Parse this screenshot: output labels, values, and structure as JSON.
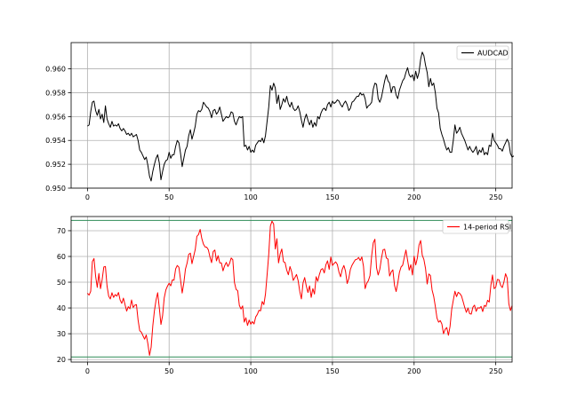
{
  "chart_data": [
    {
      "type": "line",
      "title": "",
      "xlabel": "",
      "ylabel": "",
      "xlim": [
        -10,
        260
      ],
      "ylim": [
        0.95,
        0.9622
      ],
      "grid": true,
      "legend_position": "top-right",
      "x_ticks": [
        0,
        50,
        100,
        150,
        200,
        250
      ],
      "x_tick_labels": [
        "0",
        "50",
        "100",
        "150",
        "200",
        "250"
      ],
      "y_ticks": [
        0.95,
        0.952,
        0.954,
        0.956,
        0.958,
        0.96
      ],
      "y_tick_labels": [
        "0.950",
        "0.952",
        "0.954",
        "0.956",
        "0.958",
        "0.960"
      ],
      "series": [
        {
          "name": "AUDCAD",
          "color": "#000000",
          "x_start": 0,
          "x_step": 1,
          "values": [
            0.9552,
            0.9553,
            0.9564,
            0.9572,
            0.9573,
            0.9565,
            0.9561,
            0.9566,
            0.9558,
            0.9562,
            0.9555,
            0.9569,
            0.9558,
            0.9554,
            0.9551,
            0.9556,
            0.9552,
            0.9553,
            0.9552,
            0.9554,
            0.955,
            0.9548,
            0.955,
            0.9548,
            0.9545,
            0.9546,
            0.9544,
            0.9546,
            0.9543,
            0.9544,
            0.9545,
            0.954,
            0.9532,
            0.953,
            0.9527,
            0.9524,
            0.9526,
            0.9519,
            0.951,
            0.9506,
            0.9514,
            0.952,
            0.9525,
            0.9528,
            0.9521,
            0.9507,
            0.9514,
            0.952,
            0.9523,
            0.9524,
            0.953,
            0.9525,
            0.9528,
            0.9528,
            0.9535,
            0.954,
            0.9538,
            0.9529,
            0.9518,
            0.9525,
            0.9532,
            0.9535,
            0.9544,
            0.9549,
            0.9541,
            0.9546,
            0.9552,
            0.9562,
            0.9565,
            0.9564,
            0.9566,
            0.9572,
            0.957,
            0.9568,
            0.9567,
            0.9564,
            0.9559,
            0.9565,
            0.9566,
            0.9562,
            0.9564,
            0.9568,
            0.9562,
            0.9556,
            0.9558,
            0.956,
            0.9559,
            0.956,
            0.9564,
            0.9563,
            0.9556,
            0.9553,
            0.9557,
            0.956,
            0.9559,
            0.956,
            0.9535,
            0.9536,
            0.9532,
            0.9535,
            0.953,
            0.9532,
            0.953,
            0.9536,
            0.9538,
            0.954,
            0.9539,
            0.9542,
            0.9538,
            0.9544,
            0.9556,
            0.9568,
            0.9586,
            0.9582,
            0.9588,
            0.9584,
            0.9571,
            0.9578,
            0.9566,
            0.957,
            0.9575,
            0.9572,
            0.9577,
            0.9571,
            0.9568,
            0.9572,
            0.9567,
            0.9565,
            0.9566,
            0.9569,
            0.9564,
            0.9557,
            0.9551,
            0.9558,
            0.9562,
            0.9557,
            0.9553,
            0.9557,
            0.9551,
            0.9555,
            0.9552,
            0.956,
            0.9558,
            0.9563,
            0.9566,
            0.9567,
            0.9565,
            0.957,
            0.9572,
            0.9568,
            0.9573,
            0.9571,
            0.9572,
            0.9574,
            0.9573,
            0.957,
            0.9568,
            0.9571,
            0.9573,
            0.957,
            0.9565,
            0.9567,
            0.9572,
            0.9573,
            0.9575,
            0.9577,
            0.9577,
            0.958,
            0.9578,
            0.9579,
            0.9575,
            0.9567,
            0.9569,
            0.957,
            0.9572,
            0.9583,
            0.9588,
            0.9587,
            0.9575,
            0.9572,
            0.9576,
            0.9583,
            0.959,
            0.9595,
            0.959,
            0.9588,
            0.958,
            0.9585,
            0.9585,
            0.9578,
            0.9575,
            0.9582,
            0.9586,
            0.959,
            0.9592,
            0.9597,
            0.9601,
            0.9595,
            0.9593,
            0.9595,
            0.959,
            0.9598,
            0.9592,
            0.9597,
            0.9608,
            0.9614,
            0.9611,
            0.9603,
            0.9597,
            0.9585,
            0.9592,
            0.9586,
            0.9588,
            0.958,
            0.9567,
            0.9563,
            0.955,
            0.9545,
            0.9541,
            0.9536,
            0.9532,
            0.9534,
            0.953,
            0.953,
            0.954,
            0.9553,
            0.9546,
            0.9548,
            0.9551,
            0.9546,
            0.9543,
            0.954,
            0.9536,
            0.9532,
            0.9535,
            0.9532,
            0.953,
            0.9532,
            0.9535,
            0.9528,
            0.9532,
            0.953,
            0.9534,
            0.9528,
            0.953,
            0.9528,
            0.9536,
            0.9535,
            0.9546,
            0.954,
            0.9538,
            0.9536,
            0.9533,
            0.9533,
            0.9531,
            0.9535,
            0.9538,
            0.9541,
            0.9538,
            0.9529,
            0.9526,
            0.9527
          ]
        }
      ]
    },
    {
      "type": "line",
      "title": "",
      "xlabel": "",
      "ylabel": "",
      "xlim": [
        -10,
        260
      ],
      "ylim": [
        19,
        75.5
      ],
      "grid": true,
      "legend_position": "top-right",
      "x_ticks": [
        0,
        50,
        100,
        150,
        200,
        250
      ],
      "x_tick_labels": [
        "0",
        "50",
        "100",
        "150",
        "200",
        "250"
      ],
      "y_ticks": [
        20,
        30,
        40,
        50,
        60,
        70
      ],
      "y_tick_labels": [
        "20",
        "30",
        "40",
        "50",
        "60",
        "70"
      ],
      "reference_lines": [
        {
          "axis": "y",
          "value": 21,
          "color": "#2e8b57"
        },
        {
          "axis": "y",
          "value": 74,
          "color": "#2e8b57"
        }
      ],
      "series": [
        {
          "name": "14-period RSI",
          "color": "#ff0000",
          "x_start": 0,
          "x_step": 1,
          "values": [
            45.7,
            45.0,
            46.5,
            58.0,
            59.2,
            52.3,
            48.0,
            53.4,
            47.5,
            51.0,
            55.9,
            56.1,
            48.5,
            44.6,
            43.5,
            45.9,
            44.1,
            45.2,
            44.6,
            46.0,
            43.1,
            41.8,
            43.8,
            41.3,
            38.8,
            40.5,
            39.7,
            43.1,
            40.2,
            41.1,
            41.3,
            35.3,
            31.2,
            30.6,
            29.2,
            27.9,
            29.5,
            26.1,
            21.6,
            24.8,
            33.0,
            38.9,
            43.1,
            45.9,
            40.0,
            33.6,
            37.0,
            43.9,
            47.0,
            48.5,
            49.6,
            48.6,
            50.9,
            50.8,
            55.2,
            56.5,
            55.8,
            50.9,
            45.8,
            49.7,
            55.1,
            57.4,
            60.8,
            61.3,
            57.2,
            60.0,
            62.7,
            67.8,
            68.5,
            70.5,
            67.0,
            64.8,
            63.7,
            63.6,
            62.6,
            59.8,
            57.6,
            61.9,
            62.5,
            58.3,
            60.3,
            57.5,
            57.5,
            54.4,
            56.4,
            57.7,
            56.1,
            57.3,
            59.4,
            58.7,
            49.9,
            47.2,
            46.7,
            41.0,
            39.6,
            40.8,
            34.5,
            36.2,
            33.2,
            35.3,
            33.7,
            34.7,
            33.8,
            36.5,
            37.5,
            39.1,
            38.9,
            42.5,
            41.3,
            45.4,
            52.9,
            60.8,
            71.8,
            73.7,
            72.6,
            62.9,
            66.9,
            57.5,
            61.0,
            62.9,
            58.0,
            57.6,
            54.7,
            52.9,
            56.1,
            54.1,
            50.7,
            51.8,
            53.0,
            50.6,
            46.4,
            43.5,
            49.7,
            51.8,
            48.5,
            46.0,
            48.6,
            44.1,
            47.5,
            45.4,
            52.1,
            50.4,
            53.0,
            54.9,
            55.3,
            53.6,
            56.8,
            58.3,
            55.0,
            59.8,
            56.5,
            57.3,
            57.9,
            56.9,
            53.9,
            52.1,
            55.0,
            56.5,
            54.3,
            49.5,
            51.4,
            55.0,
            56.6,
            57.7,
            58.7,
            58.9,
            59.6,
            58.4,
            59.8,
            56.2,
            47.5,
            49.6,
            50.6,
            52.6,
            60.2,
            65.3,
            66.7,
            55.6,
            52.8,
            55.0,
            59.3,
            62.6,
            62.8,
            59.4,
            59.0,
            52.4,
            54.0,
            54.8,
            48.8,
            46.4,
            49.7,
            53.8,
            55.9,
            56.6,
            59.6,
            62.5,
            58.6,
            54.7,
            56.8,
            52.8,
            60.1,
            56.7,
            59.4,
            64.4,
            66.2,
            60.5,
            58.8,
            55.3,
            49.3,
            53.2,
            52.6,
            47.0,
            44.5,
            40.6,
            36.1,
            34.5,
            35.1,
            33.8,
            30.0,
            31.7,
            32.4,
            29.4,
            32.8,
            39.4,
            43.0,
            46.5,
            44.4,
            46.1,
            45.6,
            44.7,
            42.5,
            40.2,
            38.3,
            40.0,
            37.8,
            37.6,
            40.3,
            41.1,
            38.7,
            40.1,
            39.9,
            40.6,
            38.6,
            41.0,
            40.6,
            43.0,
            42.3,
            48.8,
            52.8,
            47.5,
            48.1,
            51.1,
            50.9,
            48.8,
            47.9,
            50.1,
            53.3,
            51.6,
            41.6,
            39.0,
            40.9
          ]
        }
      ]
    }
  ]
}
